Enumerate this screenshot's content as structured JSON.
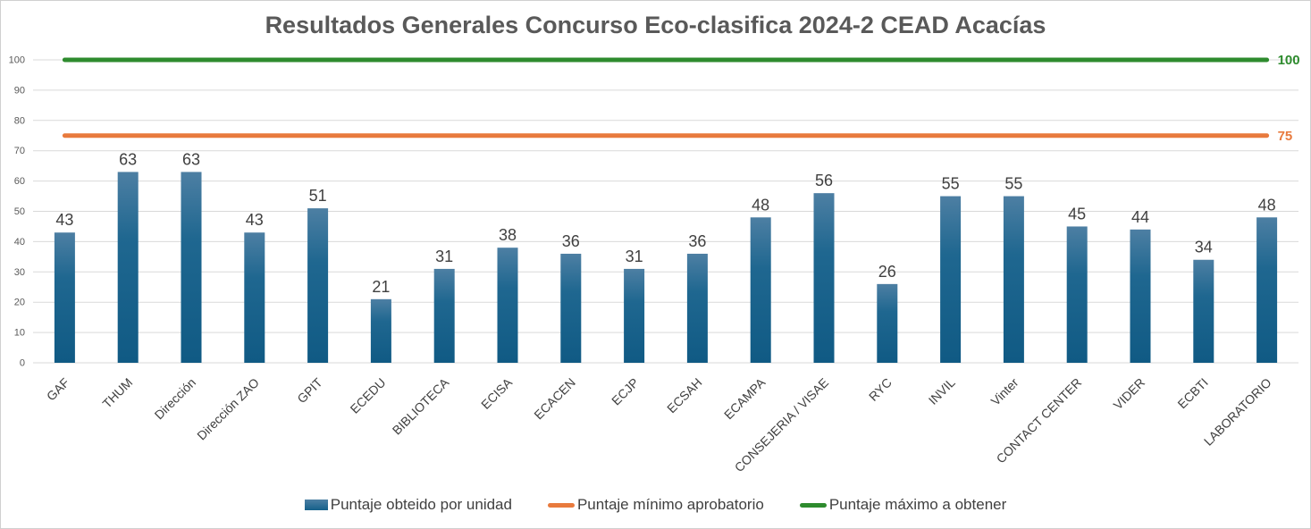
{
  "chart_data": {
    "type": "bar",
    "title": "Resultados Generales Concurso Eco-clasifica 2024-2 CEAD Acacías",
    "xlabel": "",
    "ylabel": "",
    "ylim": [
      0,
      100
    ],
    "yticks": [
      "0",
      "10",
      "20",
      "30",
      "40",
      "50",
      "60",
      "70",
      "80",
      "90",
      "100"
    ],
    "grid": true,
    "legend_position": "bottom",
    "categories": [
      "GAF",
      "THUM",
      "Dirección",
      "Dirección ZAO",
      "GPIT",
      "ECEDU",
      "BIBLIOTECA",
      "ECISA",
      "ECACEN",
      "ECJP",
      "ECSAH",
      "ECAMPA",
      "CONSEJERIA / VISAE",
      "RYC",
      "INVIL",
      "Vinter",
      "CONTACT CENTER",
      "VIDER",
      "ECBTI",
      "LABORATORIO"
    ],
    "series": [
      {
        "name": "Puntaje obteido por unidad",
        "kind": "bar",
        "color": "#1f5f87",
        "values": [
          43,
          63,
          63,
          43,
          51,
          21,
          31,
          38,
          36,
          31,
          36,
          48,
          56,
          26,
          55,
          55,
          45,
          44,
          34,
          48
        ]
      },
      {
        "name": "Puntaje mínimo aprobatorio",
        "kind": "line",
        "color": "#e87a3d",
        "value": 75,
        "label": "75"
      },
      {
        "name": "Puntaje máximo a obtener",
        "kind": "line",
        "color": "#2e8b2e",
        "value": 100,
        "label": "100"
      }
    ]
  }
}
